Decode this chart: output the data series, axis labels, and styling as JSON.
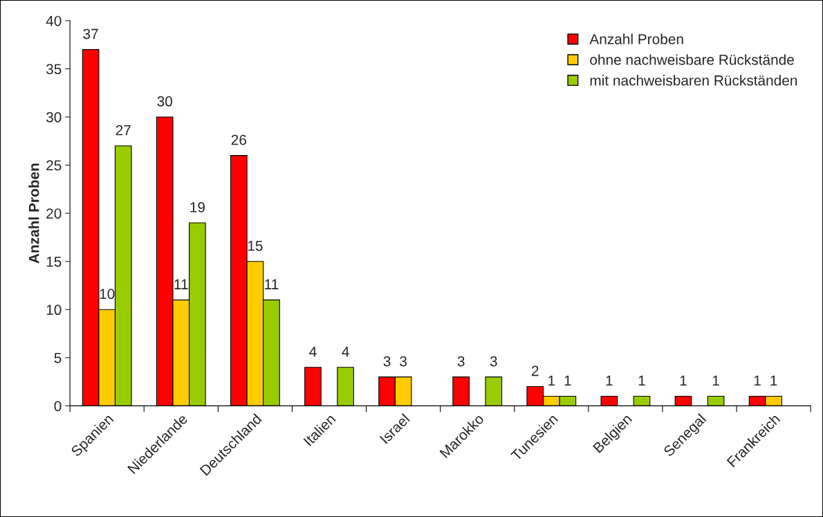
{
  "chart_data": {
    "type": "bar",
    "ylabel": "Anzahl Proben",
    "categories": [
      "Spanien",
      "Niederlande",
      "Deutschland",
      "Italien",
      "Israel",
      "Marokko",
      "Tunesien",
      "Belgien",
      "Senegal",
      "Frankreich"
    ],
    "series": [
      {
        "name": "Anzahl Proben",
        "color": "#ff0000",
        "values": [
          37,
          30,
          26,
          4,
          3,
          3,
          2,
          1,
          1,
          1
        ]
      },
      {
        "name": "ohne nachweisbare Rückstände",
        "color": "#ffcc00",
        "values": [
          10,
          11,
          15,
          null,
          3,
          null,
          1,
          null,
          null,
          1
        ]
      },
      {
        "name": "mit nachweisbaren Rückständen",
        "color": "#99cc00",
        "values": [
          27,
          19,
          11,
          4,
          null,
          3,
          1,
          1,
          1,
          null
        ]
      }
    ],
    "ylim": [
      0,
      40
    ],
    "yticks": [
      0,
      5,
      10,
      15,
      20,
      25,
      30,
      35,
      40
    ],
    "grid": false,
    "legend": "top right",
    "data_labels": true
  }
}
